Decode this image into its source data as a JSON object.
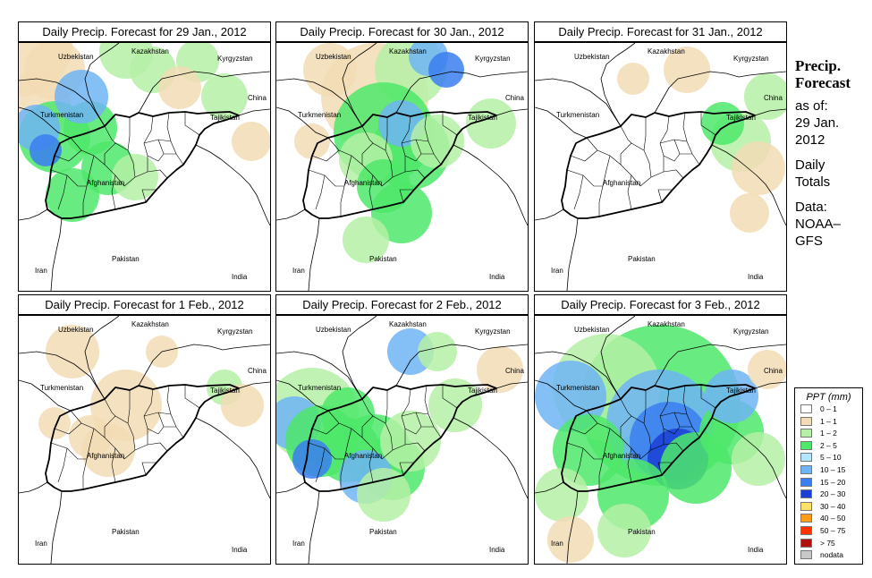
{
  "panels": [
    {
      "title": "Daily Precip. Forecast for  29 Jan., 2012"
    },
    {
      "title": "Daily Precip. Forecast for  30 Jan., 2012"
    },
    {
      "title": "Daily Precip. Forecast for  31 Jan., 2012"
    },
    {
      "title": "Daily Precip. Forecast for  1 Feb., 2012"
    },
    {
      "title": "Daily Precip. Forecast for  2 Feb., 2012"
    },
    {
      "title": "Daily Precip. Forecast for  3 Feb., 2012"
    }
  ],
  "countries": {
    "kazakhstan": "Kazakhstan",
    "uzbekistan": "Uzbekistan",
    "kyrgyzstan": "Kyrgyzstan",
    "turkmenistan": "Turkmenistan",
    "china": "China",
    "tajikistan": "Tajikistan",
    "afghanistan": "Afghanistan",
    "pakistan": "Pakistan",
    "iran": "Iran",
    "india": "India"
  },
  "sidebar": {
    "title_line1": "Precip.",
    "title_line2": "Forecast",
    "asof_line1": "as of:",
    "asof_line2": "29 Jan.",
    "asof_line3": "2012",
    "daily_line1": "Daily",
    "daily_line2": "Totals",
    "data_line1": "Data:",
    "data_line2": "NOAA–",
    "data_line3": "GFS"
  },
  "legend": {
    "title": "PPT (mm)",
    "bins": [
      {
        "label": "0 – 1",
        "color": "#ffffff"
      },
      {
        "label": "1 – 1",
        "color": "#f2dcb5"
      },
      {
        "label": "1 – 2",
        "color": "#b5f0a6"
      },
      {
        "label": "2 – 5",
        "color": "#4ee86a"
      },
      {
        "label": "5 – 10",
        "color": "#b3e6ff"
      },
      {
        "label": "10 – 15",
        "color": "#6fb4f5"
      },
      {
        "label": "15 – 20",
        "color": "#3a7ef0"
      },
      {
        "label": "20 – 30",
        "color": "#1a3fd6"
      },
      {
        "label": "30 – 40",
        "color": "#ffe066"
      },
      {
        "label": "40 – 50",
        "color": "#ff9d1a"
      },
      {
        "label": "50 – 75",
        "color": "#ff3300"
      },
      {
        "label": "> 75",
        "color": "#b01010"
      },
      {
        "label": "nodata",
        "color": "#c8c8c8"
      }
    ]
  }
}
